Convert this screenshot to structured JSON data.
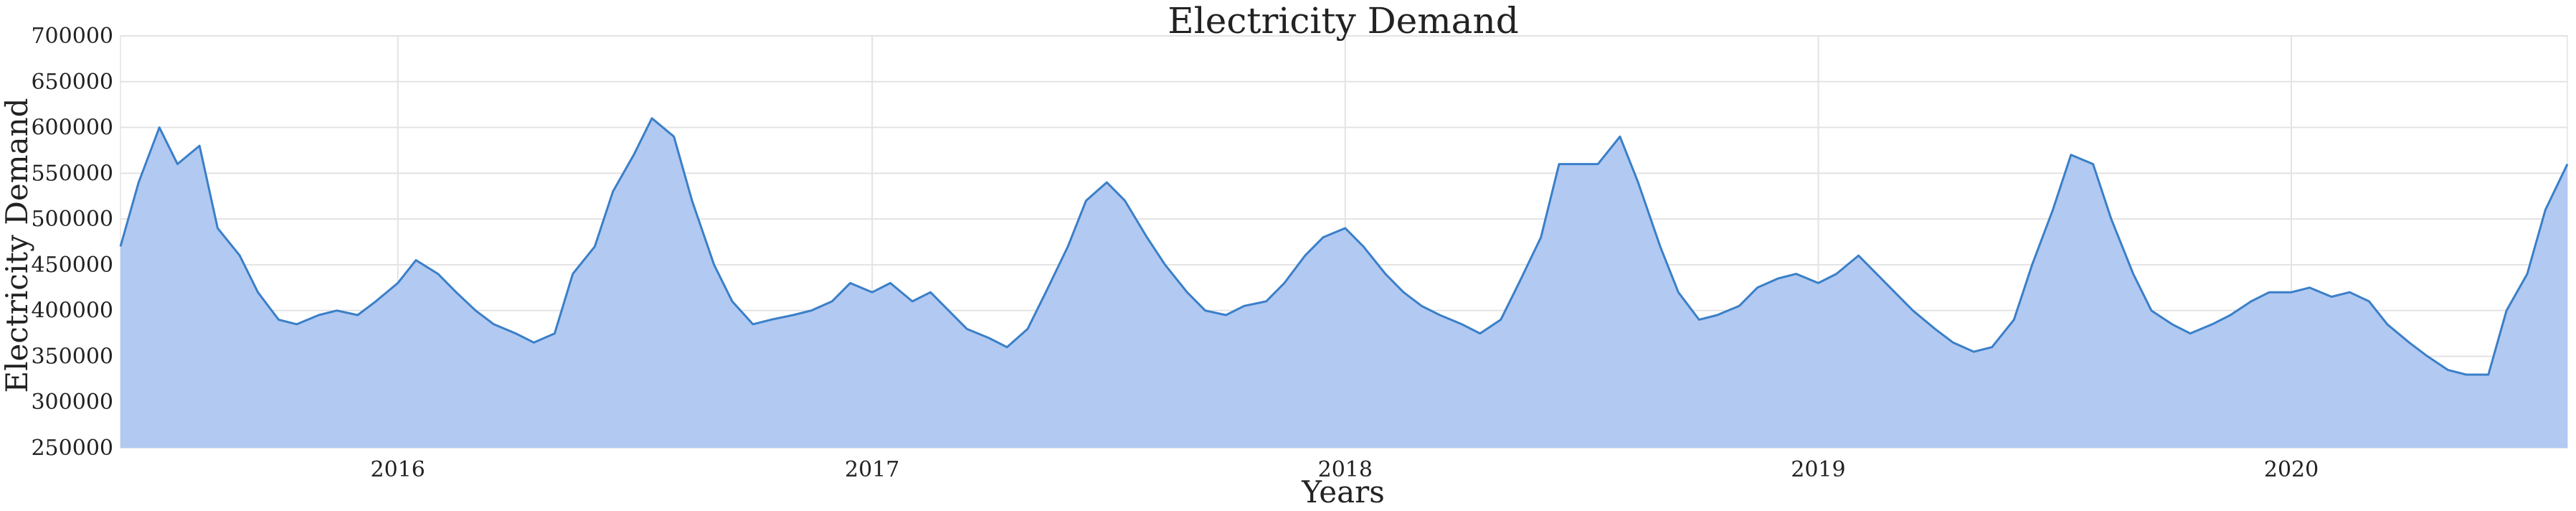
{
  "chart_data": {
    "type": "area",
    "title": "Electricity Demand",
    "xlabel": "Years",
    "ylabel": "Electricity Demand",
    "x_ticks": [
      "2016",
      "2017",
      "2018",
      "2019",
      "2020"
    ],
    "x_tick_dates": [
      "2016-01-01",
      "2017-01-01",
      "2018-01-01",
      "2019-01-01",
      "2020-01-01"
    ],
    "y_ticks": [
      250000,
      300000,
      350000,
      400000,
      450000,
      500000,
      550000,
      600000,
      650000,
      700000
    ],
    "y_tick_labels": [
      "250000",
      "300000",
      "350000",
      "400000",
      "450000",
      "500000",
      "550000",
      "600000",
      "650000",
      "700000"
    ],
    "ylim": [
      250000,
      700000
    ],
    "xlim": [
      "2015-06-01",
      "2020-08-01"
    ],
    "grid": true,
    "colors": {
      "line": "#3a7fc8",
      "fill": "#b2c9f2",
      "grid": "#e3e3e3"
    },
    "series": [
      {
        "x": [
          "2015-06-01",
          "2015-06-15",
          "2015-07-01",
          "2015-07-15",
          "2015-08-01",
          "2015-08-15",
          "2015-09-01",
          "2015-09-15",
          "2015-10-01",
          "2015-10-15",
          "2015-11-01",
          "2015-11-15",
          "2015-12-01",
          "2015-12-15",
          "2016-01-01",
          "2016-01-15",
          "2016-02-01",
          "2016-02-15",
          "2016-03-01",
          "2016-03-15",
          "2016-04-01",
          "2016-04-15",
          "2016-05-01",
          "2016-05-15",
          "2016-06-01",
          "2016-06-15",
          "2016-07-01",
          "2016-07-15",
          "2016-08-01",
          "2016-08-15",
          "2016-09-01",
          "2016-09-15",
          "2016-10-01",
          "2016-10-15",
          "2016-11-01",
          "2016-11-15",
          "2016-12-01",
          "2016-12-15",
          "2017-01-01",
          "2017-01-15",
          "2017-02-01",
          "2017-02-15",
          "2017-03-01",
          "2017-03-15",
          "2017-04-01",
          "2017-04-15",
          "2017-05-01",
          "2017-05-15",
          "2017-06-01",
          "2017-06-15",
          "2017-07-01",
          "2017-07-15",
          "2017-08-01",
          "2017-08-15",
          "2017-09-01",
          "2017-09-15",
          "2017-10-01",
          "2017-10-15",
          "2017-11-01",
          "2017-11-15",
          "2017-12-01",
          "2017-12-15",
          "2018-01-01",
          "2018-01-15",
          "2018-02-01",
          "2018-02-15",
          "2018-03-01",
          "2018-03-15",
          "2018-04-01",
          "2018-04-15",
          "2018-05-01",
          "2018-05-15",
          "2018-06-01",
          "2018-06-15",
          "2018-07-01",
          "2018-07-15",
          "2018-08-01",
          "2018-08-15",
          "2018-09-01",
          "2018-09-15",
          "2018-10-01",
          "2018-10-15",
          "2018-11-01",
          "2018-11-15",
          "2018-12-01",
          "2018-12-15",
          "2019-01-01",
          "2019-01-15",
          "2019-02-01",
          "2019-02-15",
          "2019-03-01",
          "2019-03-15",
          "2019-04-01",
          "2019-04-15",
          "2019-05-01",
          "2019-05-15",
          "2019-06-01",
          "2019-06-15",
          "2019-07-01",
          "2019-07-15",
          "2019-08-01",
          "2019-08-15",
          "2019-09-01",
          "2019-09-15",
          "2019-10-01",
          "2019-10-15",
          "2019-11-01",
          "2019-11-15",
          "2019-12-01",
          "2019-12-15",
          "2020-01-01",
          "2020-01-15",
          "2020-02-01",
          "2020-02-15",
          "2020-03-01",
          "2020-03-15",
          "2020-04-01",
          "2020-04-15",
          "2020-05-01",
          "2020-05-15",
          "2020-06-01",
          "2020-06-15",
          "2020-07-01",
          "2020-07-15",
          "2020-08-01"
        ],
        "y": [
          470000,
          540000,
          600000,
          560000,
          580000,
          490000,
          460000,
          420000,
          390000,
          385000,
          395000,
          400000,
          395000,
          410000,
          430000,
          455000,
          440000,
          420000,
          400000,
          385000,
          375000,
          365000,
          375000,
          440000,
          470000,
          530000,
          570000,
          610000,
          590000,
          520000,
          450000,
          410000,
          385000,
          390000,
          395000,
          400000,
          410000,
          430000,
          420000,
          430000,
          410000,
          420000,
          400000,
          380000,
          370000,
          360000,
          380000,
          420000,
          470000,
          520000,
          540000,
          520000,
          480000,
          450000,
          420000,
          400000,
          395000,
          405000,
          410000,
          430000,
          460000,
          480000,
          490000,
          470000,
          440000,
          420000,
          405000,
          395000,
          385000,
          375000,
          390000,
          430000,
          480000,
          560000,
          560000,
          560000,
          590000,
          540000,
          470000,
          420000,
          390000,
          395000,
          405000,
          425000,
          435000,
          440000,
          430000,
          440000,
          460000,
          440000,
          420000,
          400000,
          380000,
          365000,
          355000,
          360000,
          390000,
          450000,
          510000,
          570000,
          560000,
          500000,
          440000,
          400000,
          385000,
          375000,
          385000,
          395000,
          410000,
          420000,
          420000,
          425000,
          415000,
          420000,
          410000,
          385000,
          365000,
          350000,
          335000,
          330000,
          330000,
          400000,
          440000,
          510000,
          560000
        ]
      }
    ]
  }
}
